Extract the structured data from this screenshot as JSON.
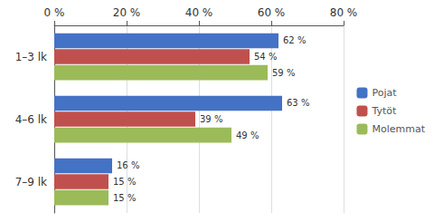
{
  "chart_data": {
    "type": "bar",
    "orientation": "horizontal",
    "categories": [
      "1–3 lk",
      "4–6 lk",
      "7–9 lk"
    ],
    "series": [
      {
        "name": "Pojat",
        "color": "#4472C4",
        "values": [
          62,
          63,
          16
        ],
        "value_labels": [
          "62 %",
          "63 %",
          "16 %"
        ]
      },
      {
        "name": "Tytöt",
        "color": "#C0504D",
        "values": [
          54,
          39,
          15
        ],
        "value_labels": [
          "54 %",
          "39 %",
          "15 %"
        ]
      },
      {
        "name": "Molemmat",
        "color": "#9BBB59",
        "values": [
          59,
          49,
          15
        ],
        "value_labels": [
          "59 %",
          "49 %",
          "15 %"
        ]
      }
    ],
    "xlim": [
      0,
      80
    ],
    "xticks": [
      {
        "value": 0,
        "label": "0 %"
      },
      {
        "value": 20,
        "label": "20 %"
      },
      {
        "value": 40,
        "label": "40 %"
      },
      {
        "value": 60,
        "label": "60 %"
      },
      {
        "value": 80,
        "label": "80 %"
      }
    ],
    "grid": true,
    "legend": "right",
    "data_labels": true
  }
}
